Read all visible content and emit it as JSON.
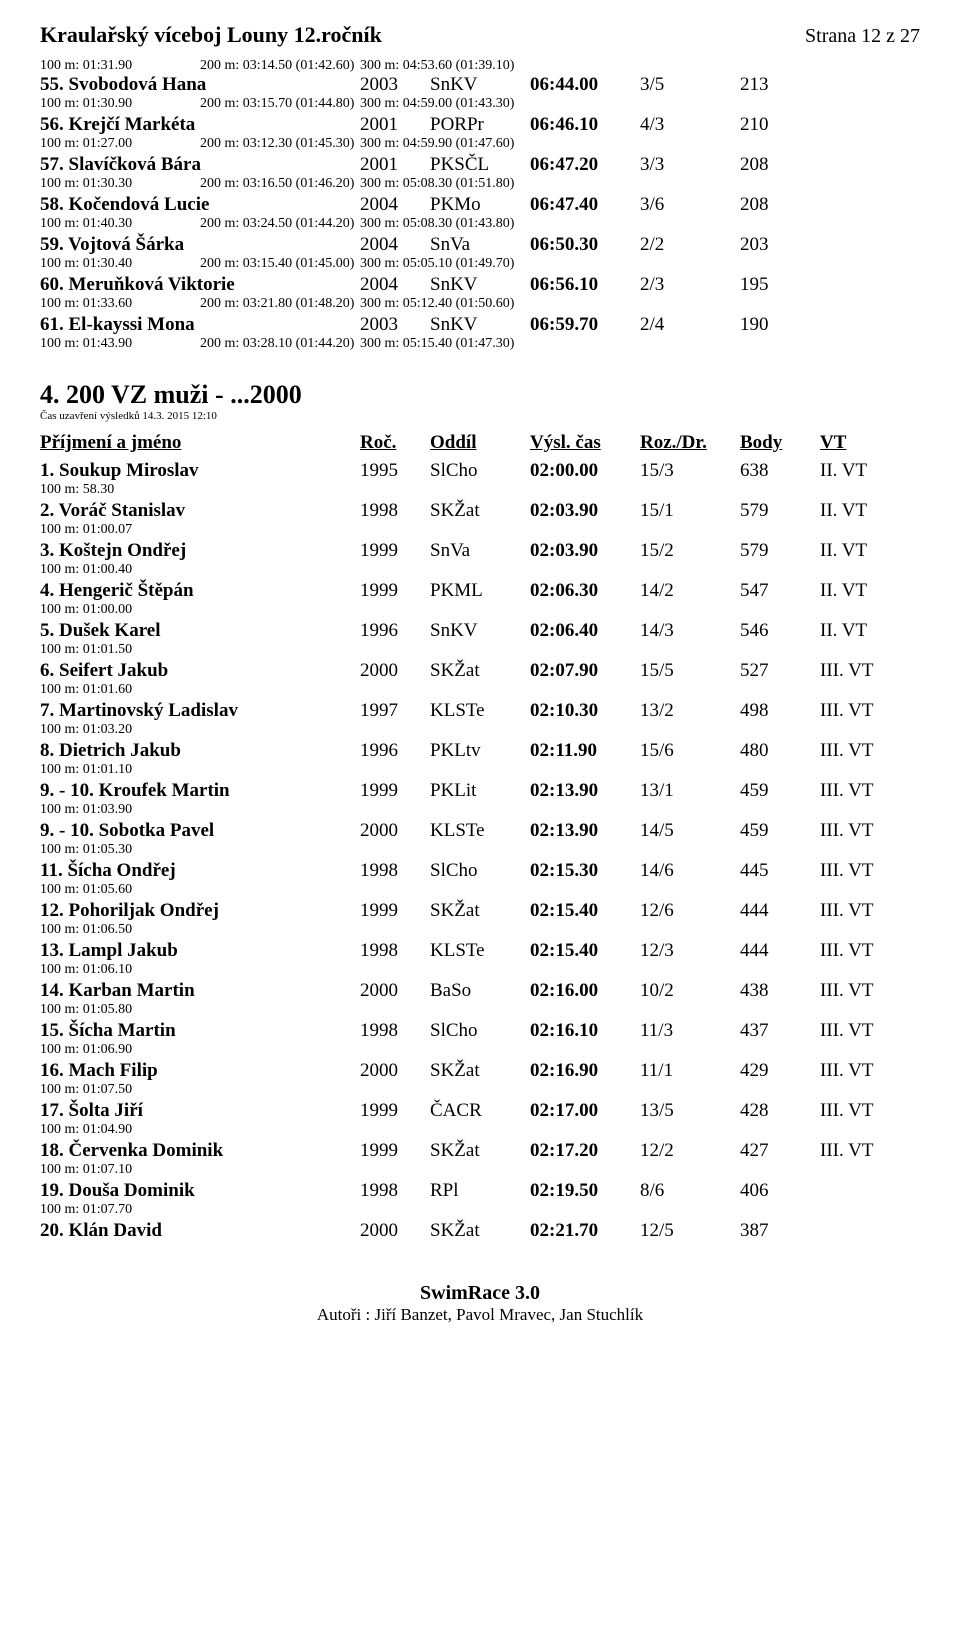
{
  "header": {
    "title": "Kraulařský víceboj Louny 12.ročník",
    "page": "Strana 12 z 27"
  },
  "top_results": [
    {
      "splits_prefix": [
        "100 m: 01:31.90",
        "200 m: 03:14.50 (01:42.60)",
        "300 m: 04:53.60 (01:39.10)"
      ],
      "name": "55. Svobodová Hana",
      "year": "2003",
      "club": "SnKV",
      "time": "06:44.00",
      "rd": "3/5",
      "body": "213",
      "vt": "",
      "splits": [
        "100 m: 01:30.90",
        "200 m: 03:15.70 (01:44.80)",
        "300 m: 04:59.00 (01:43.30)"
      ]
    },
    {
      "name": "56. Krejčí Markéta",
      "year": "2001",
      "club": "PORPr",
      "time": "06:46.10",
      "rd": "4/3",
      "body": "210",
      "vt": "",
      "splits": [
        "100 m: 01:27.00",
        "200 m: 03:12.30 (01:45.30)",
        "300 m: 04:59.90 (01:47.60)"
      ]
    },
    {
      "name": "57. Slavíčková Bára",
      "year": "2001",
      "club": "PKSČL",
      "time": "06:47.20",
      "rd": "3/3",
      "body": "208",
      "vt": "",
      "splits": [
        "100 m: 01:30.30",
        "200 m: 03:16.50 (01:46.20)",
        "300 m: 05:08.30 (01:51.80)"
      ]
    },
    {
      "name": "58. Kočendová Lucie",
      "year": "2004",
      "club": "PKMo",
      "time": "06:47.40",
      "rd": "3/6",
      "body": "208",
      "vt": "",
      "splits": [
        "100 m: 01:40.30",
        "200 m: 03:24.50 (01:44.20)",
        "300 m: 05:08.30 (01:43.80)"
      ]
    },
    {
      "name": "59. Vojtová Šárka",
      "year": "2004",
      "club": "SnVa",
      "time": "06:50.30",
      "rd": "2/2",
      "body": "203",
      "vt": "",
      "splits": [
        "100 m: 01:30.40",
        "200 m: 03:15.40 (01:45.00)",
        "300 m: 05:05.10 (01:49.70)"
      ]
    },
    {
      "name": "60. Meruňková Viktorie",
      "year": "2004",
      "club": "SnKV",
      "time": "06:56.10",
      "rd": "2/3",
      "body": "195",
      "vt": "",
      "splits": [
        "100 m: 01:33.60",
        "200 m: 03:21.80 (01:48.20)",
        "300 m: 05:12.40 (01:50.60)"
      ]
    },
    {
      "name": "61. El-kayssi Mona",
      "year": "2003",
      "club": "SnKV",
      "time": "06:59.70",
      "rd": "2/4",
      "body": "190",
      "vt": "",
      "splits": [
        "100 m: 01:43.90",
        "200 m: 03:28.10 (01:44.20)",
        "300 m: 05:15.40 (01:47.30)"
      ]
    }
  ],
  "section": {
    "title": "4. 200 VZ muži - ...2000",
    "sub": "Čas uzavření výsledků 14.3. 2015 12:10"
  },
  "columns": {
    "name": "Příjmení a jméno",
    "year": "Roč.",
    "club": "Oddíl",
    "time": "Výsl. čas",
    "rd": "Roz./Dr.",
    "body": "Body",
    "vt": "VT"
  },
  "results": [
    {
      "name": "1. Soukup Miroslav",
      "year": "1995",
      "club": "SlCho",
      "time": "02:00.00",
      "rd": "15/3",
      "body": "638",
      "vt": "II. VT",
      "splits": [
        "100 m: 58.30"
      ]
    },
    {
      "name": "2. Voráč Stanislav",
      "year": "1998",
      "club": "SKŽat",
      "time": "02:03.90",
      "rd": "15/1",
      "body": "579",
      "vt": "II. VT",
      "splits": [
        "100 m: 01:00.07"
      ]
    },
    {
      "name": "3. Koštejn Ondřej",
      "year": "1999",
      "club": "SnVa",
      "time": "02:03.90",
      "rd": "15/2",
      "body": "579",
      "vt": "II. VT",
      "splits": [
        "100 m: 01:00.40"
      ]
    },
    {
      "name": "4. Hengerič Štěpán",
      "year": "1999",
      "club": "PKML",
      "time": "02:06.30",
      "rd": "14/2",
      "body": "547",
      "vt": "II. VT",
      "splits": [
        "100 m: 01:00.00"
      ]
    },
    {
      "name": "5. Dušek Karel",
      "year": "1996",
      "club": "SnKV",
      "time": "02:06.40",
      "rd": "14/3",
      "body": "546",
      "vt": "II. VT",
      "splits": [
        "100 m: 01:01.50"
      ]
    },
    {
      "name": "6. Seifert Jakub",
      "year": "2000",
      "club": "SKŽat",
      "time": "02:07.90",
      "rd": "15/5",
      "body": "527",
      "vt": "III. VT",
      "splits": [
        "100 m: 01:01.60"
      ]
    },
    {
      "name": "7. Martinovský Ladislav",
      "year": "1997",
      "club": "KLSTe",
      "time": "02:10.30",
      "rd": "13/2",
      "body": "498",
      "vt": "III. VT",
      "splits": [
        "100 m: 01:03.20"
      ]
    },
    {
      "name": "8. Dietrich Jakub",
      "year": "1996",
      "club": "PKLtv",
      "time": "02:11.90",
      "rd": "15/6",
      "body": "480",
      "vt": "III. VT",
      "splits": [
        "100 m: 01:01.10"
      ]
    },
    {
      "name": "9. - 10. Kroufek Martin",
      "year": "1999",
      "club": "PKLit",
      "time": "02:13.90",
      "rd": "13/1",
      "body": "459",
      "vt": "III. VT",
      "splits": [
        "100 m: 01:03.90"
      ]
    },
    {
      "name": "9. - 10. Sobotka Pavel",
      "year": "2000",
      "club": "KLSTe",
      "time": "02:13.90",
      "rd": "14/5",
      "body": "459",
      "vt": "III. VT",
      "splits": [
        "100 m: 01:05.30"
      ]
    },
    {
      "name": "11. Šícha Ondřej",
      "year": "1998",
      "club": "SlCho",
      "time": "02:15.30",
      "rd": "14/6",
      "body": "445",
      "vt": "III. VT",
      "splits": [
        "100 m: 01:05.60"
      ]
    },
    {
      "name": "12. Pohoriljak Ondřej",
      "year": "1999",
      "club": "SKŽat",
      "time": "02:15.40",
      "rd": "12/6",
      "body": "444",
      "vt": "III. VT",
      "splits": [
        "100 m: 01:06.50"
      ]
    },
    {
      "name": "13. Lampl Jakub",
      "year": "1998",
      "club": "KLSTe",
      "time": "02:15.40",
      "rd": "12/3",
      "body": "444",
      "vt": "III. VT",
      "splits": [
        "100 m: 01:06.10"
      ]
    },
    {
      "name": "14. Karban Martin",
      "year": "2000",
      "club": "BaSo",
      "time": "02:16.00",
      "rd": "10/2",
      "body": "438",
      "vt": "III. VT",
      "splits": [
        "100 m: 01:05.80"
      ]
    },
    {
      "name": "15. Šícha Martin",
      "year": "1998",
      "club": "SlCho",
      "time": "02:16.10",
      "rd": "11/3",
      "body": "437",
      "vt": "III. VT",
      "splits": [
        "100 m: 01:06.90"
      ]
    },
    {
      "name": "16. Mach Filip",
      "year": "2000",
      "club": "SKŽat",
      "time": "02:16.90",
      "rd": "11/1",
      "body": "429",
      "vt": "III. VT",
      "splits": [
        "100 m: 01:07.50"
      ]
    },
    {
      "name": "17. Šolta Jiří",
      "year": "1999",
      "club": "ČACR",
      "time": "02:17.00",
      "rd": "13/5",
      "body": "428",
      "vt": "III. VT",
      "splits": [
        "100 m: 01:04.90"
      ]
    },
    {
      "name": "18. Červenka Dominik",
      "year": "1999",
      "club": "SKŽat",
      "time": "02:17.20",
      "rd": "12/2",
      "body": "427",
      "vt": "III. VT",
      "splits": [
        "100 m: 01:07.10"
      ]
    },
    {
      "name": "19. Douša Dominik",
      "year": "1998",
      "club": "RPl",
      "time": "02:19.50",
      "rd": "8/6",
      "body": "406",
      "vt": "",
      "splits": [
        "100 m: 01:07.70"
      ]
    },
    {
      "name": "20. Klán David",
      "year": "2000",
      "club": "SKŽat",
      "time": "02:21.70",
      "rd": "12/5",
      "body": "387",
      "vt": "",
      "splits": []
    }
  ],
  "footer": {
    "title": "SwimRace 3.0",
    "authors": "Autoři : Jiří Banzet, Pavol Mravec, Jan Stuchlík"
  }
}
